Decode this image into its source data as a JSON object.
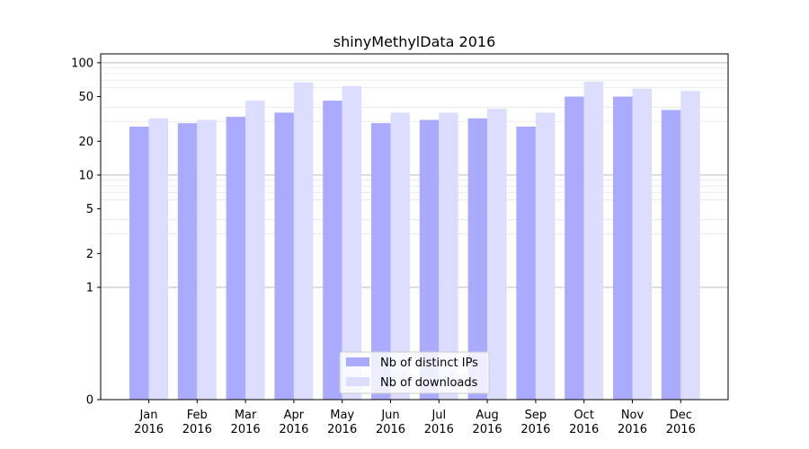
{
  "chart_data": {
    "type": "bar",
    "title": "shinyMethylData 2016",
    "xlabel": "",
    "ylabel": "",
    "yscale": "symlog",
    "ylim": [
      0,
      120
    ],
    "y_ticks": [
      0,
      1,
      2,
      5,
      10,
      20,
      50,
      100
    ],
    "grid": "horizontal",
    "legend_position": "lower-center",
    "categories": [
      {
        "month": "Jan",
        "year": "2016"
      },
      {
        "month": "Feb",
        "year": "2016"
      },
      {
        "month": "Mar",
        "year": "2016"
      },
      {
        "month": "Apr",
        "year": "2016"
      },
      {
        "month": "May",
        "year": "2016"
      },
      {
        "month": "Jun",
        "year": "2016"
      },
      {
        "month": "Jul",
        "year": "2016"
      },
      {
        "month": "Aug",
        "year": "2016"
      },
      {
        "month": "Sep",
        "year": "2016"
      },
      {
        "month": "Oct",
        "year": "2016"
      },
      {
        "month": "Nov",
        "year": "2016"
      },
      {
        "month": "Dec",
        "year": "2016"
      }
    ],
    "series": [
      {
        "name": "Nb of distinct IPs",
        "color": "#aaaaff",
        "values": [
          27,
          29,
          33,
          36,
          46,
          29,
          31,
          32,
          27,
          50,
          50,
          38
        ]
      },
      {
        "name": "Nb of downloads",
        "color": "#ddddff",
        "values": [
          32,
          31,
          46,
          67,
          62,
          36,
          36,
          39,
          36,
          68,
          59,
          56
        ]
      }
    ]
  }
}
